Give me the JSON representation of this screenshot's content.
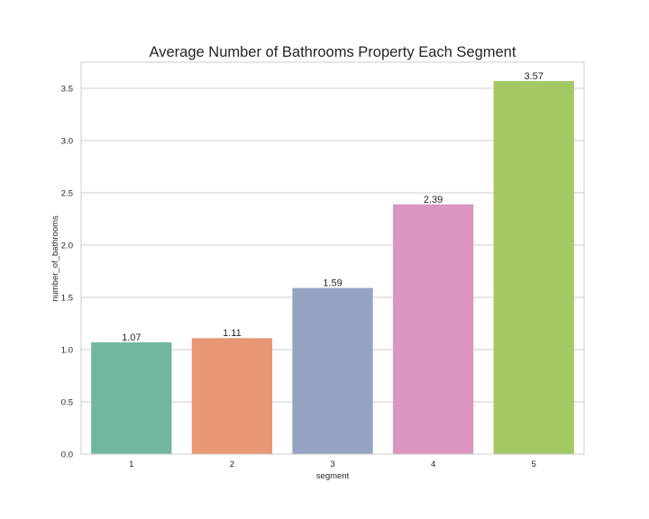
{
  "chart_data": {
    "type": "bar",
    "title": "Average Number of Bathrooms Property Each Segment",
    "xlabel": "segment",
    "ylabel": "number_of_bathrooms",
    "categories": [
      "1",
      "2",
      "3",
      "4",
      "5"
    ],
    "values": [
      1.07,
      1.11,
      1.59,
      2.39,
      3.57
    ],
    "data_labels": [
      "1.07",
      "1.11",
      "1.59",
      "2.39",
      "3.57"
    ],
    "yticks": [
      0.0,
      0.5,
      1.0,
      1.5,
      2.0,
      2.5,
      3.0,
      3.5
    ],
    "ytick_labels": [
      "0.0",
      "0.5",
      "1.0",
      "1.5",
      "2.0",
      "2.5",
      "3.0",
      "3.5"
    ],
    "ylim": [
      0,
      3.75
    ],
    "grid": true,
    "colors": [
      "#72b6a1",
      "#e99675",
      "#95a3c3",
      "#db96c0",
      "#a3c864"
    ]
  }
}
